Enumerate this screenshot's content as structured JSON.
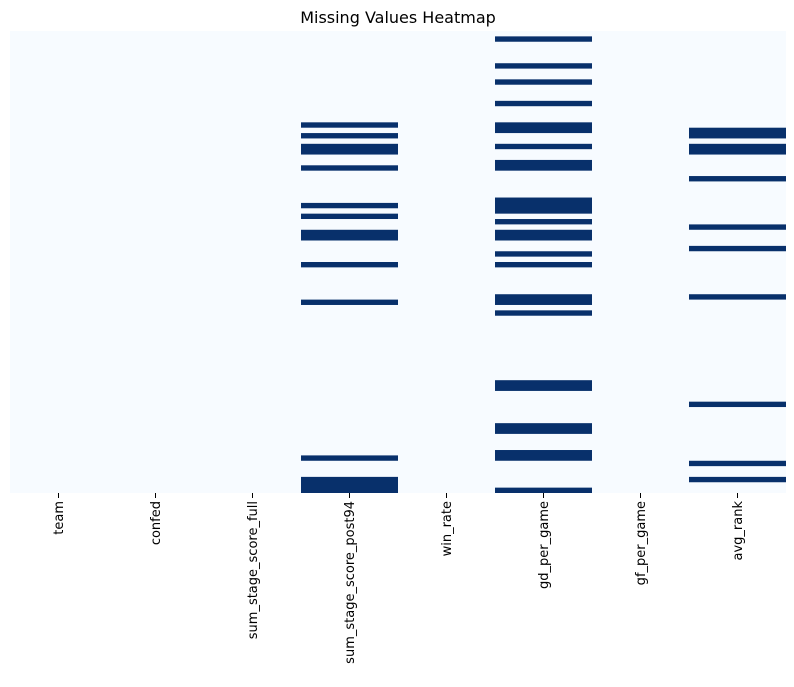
{
  "chart_data": {
    "type": "heatmap",
    "title": "Missing Values Heatmap",
    "xlabel": "",
    "ylabel": "",
    "columns": [
      "team",
      "confed",
      "sum_stage_score_full",
      "sum_stage_score_post94",
      "win_rate",
      "gd_per_game",
      "gf_per_game",
      "avg_rank"
    ],
    "row_count": 86,
    "value_meaning": "missing",
    "colors": {
      "present": "#f7fbff",
      "missing": "#08306b"
    },
    "colorbar": false,
    "missing_row_ranges": {
      "team": [],
      "confed": [],
      "sum_stage_score_full": [],
      "sum_stage_score_post94": [
        [
          17,
          17
        ],
        [
          19,
          19
        ],
        [
          21,
          22
        ],
        [
          25,
          25
        ],
        [
          32,
          32
        ],
        [
          34,
          34
        ],
        [
          37,
          38
        ],
        [
          43,
          43
        ],
        [
          50,
          50
        ],
        [
          79,
          79
        ],
        [
          83,
          85
        ]
      ],
      "win_rate": [],
      "gd_per_game": [
        [
          1,
          1
        ],
        [
          6,
          6
        ],
        [
          9,
          9
        ],
        [
          13,
          13
        ],
        [
          17,
          18
        ],
        [
          21,
          21
        ],
        [
          24,
          25
        ],
        [
          31,
          33
        ],
        [
          35,
          35
        ],
        [
          37,
          38
        ],
        [
          41,
          41
        ],
        [
          43,
          43
        ],
        [
          49,
          50
        ],
        [
          52,
          52
        ],
        [
          65,
          66
        ],
        [
          73,
          74
        ],
        [
          78,
          79
        ],
        [
          85,
          85
        ]
      ],
      "gf_per_game": [],
      "avg_rank": [
        [
          18,
          19
        ],
        [
          21,
          22
        ],
        [
          27,
          27
        ],
        [
          36,
          36
        ],
        [
          40,
          40
        ],
        [
          49,
          49
        ],
        [
          69,
          69
        ],
        [
          80,
          80
        ],
        [
          83,
          83
        ]
      ]
    }
  }
}
